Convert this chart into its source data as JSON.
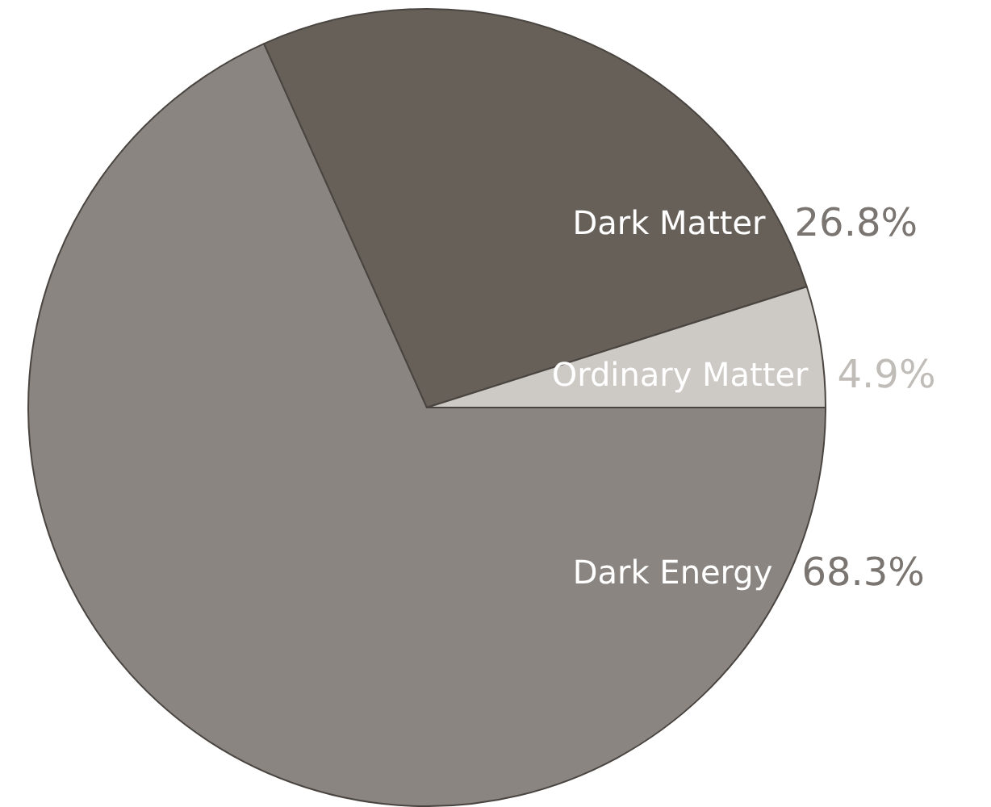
{
  "chart_data": {
    "type": "pie",
    "categories": [
      "Dark Energy",
      "Dark Matter",
      "Ordinary Matter"
    ],
    "values": [
      68.3,
      26.8,
      4.9
    ],
    "colors": [
      "#8a8580",
      "#666059",
      "#cdc9c5"
    ],
    "value_labels": [
      "68.3%",
      "26.8%",
      "4.9%"
    ],
    "legend": false
  }
}
